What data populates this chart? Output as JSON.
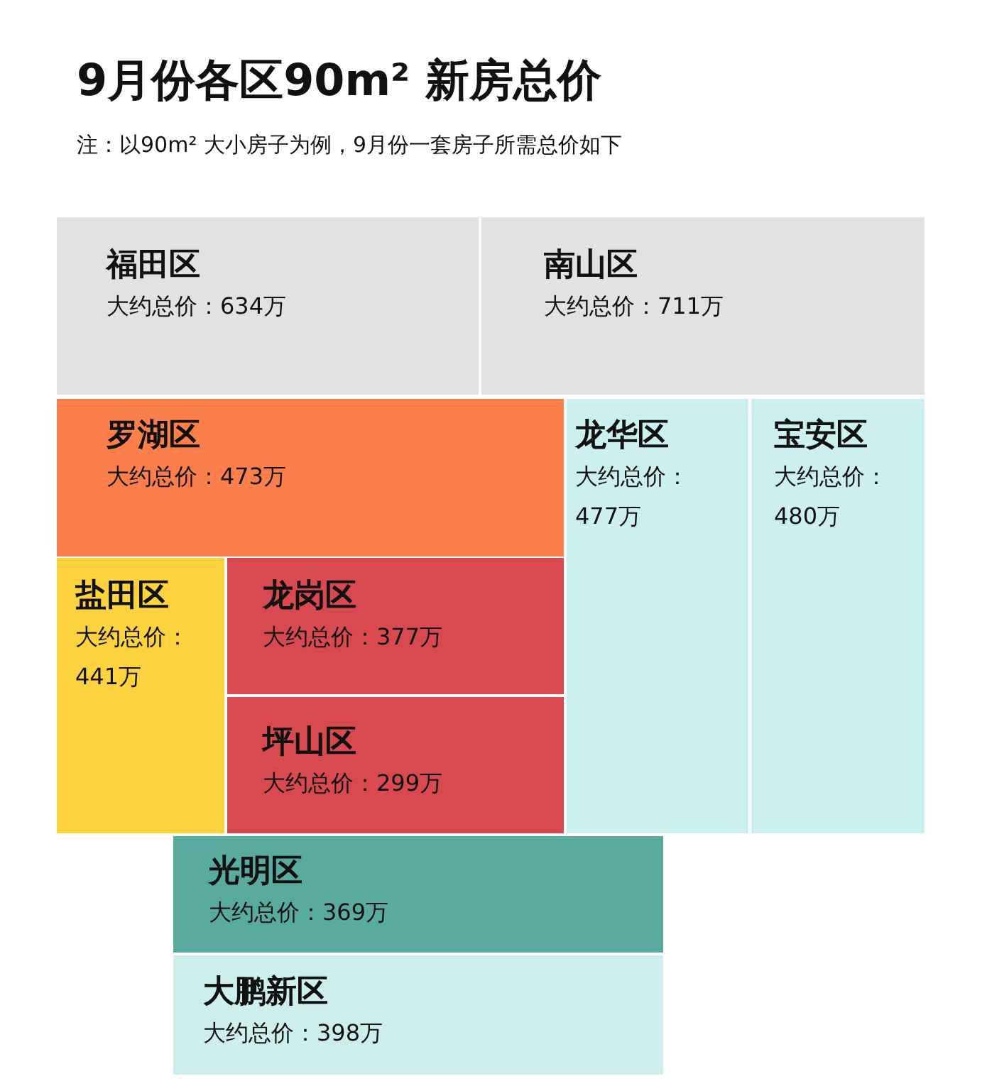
{
  "chart_data": {
    "type": "other",
    "title": "9月份各区90m² 新房总价",
    "subtitle": "注：以90m² 大小房子为例，9月份一套房子所需总价如下",
    "categories": [
      "福田区",
      "南山区",
      "罗湖区",
      "龙华区",
      "宝安区",
      "盐田区",
      "龙岗区",
      "坪山区",
      "光明区",
      "大鹏新区"
    ],
    "values": [
      634,
      711,
      473,
      477,
      480,
      441,
      377,
      299,
      369,
      398
    ],
    "value_labels": [
      "大约总价：634万",
      "大约总价：711万",
      "大约总价：473万",
      "大约总价：477万",
      "大约总价：480万",
      "大约总价：441万",
      "大约总价：377万",
      "大约总价：299万",
      "大约总价：369万",
      "大约总价：398万"
    ],
    "colors": [
      "#e2e2e2",
      "#e2e2e2",
      "#fb7f4b",
      "#ccf0f0",
      "#ccf0f0",
      "#fdd23f",
      "#d94a50",
      "#d94a50",
      "#5aab9f",
      "#ccefed"
    ]
  }
}
